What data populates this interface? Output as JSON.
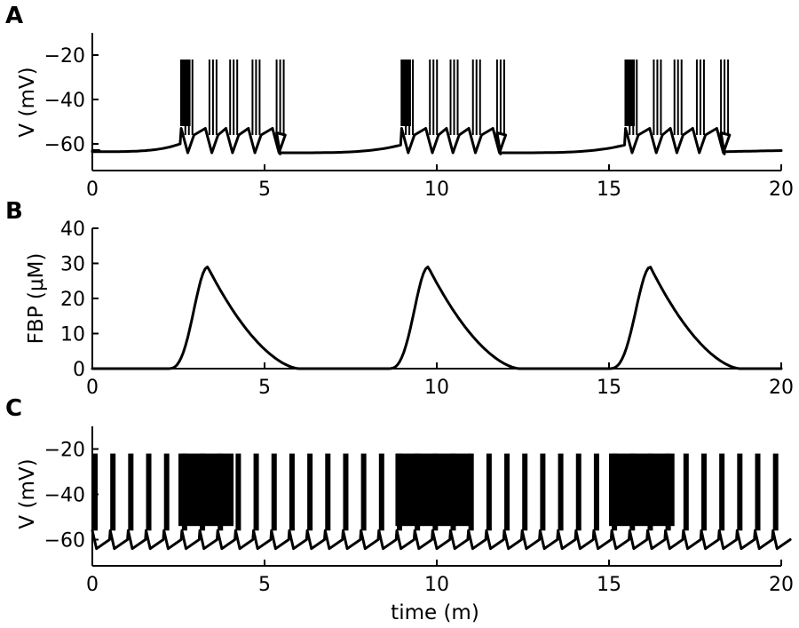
{
  "chart_data": [
    {
      "panel": "A",
      "type": "line",
      "ylabel": "V (mV)",
      "xlabel": "",
      "xlim": [
        0,
        20
      ],
      "ylim": [
        -70,
        -10
      ],
      "xticks": [
        0,
        5,
        10,
        15,
        20
      ],
      "yticks": [
        -20,
        -40,
        -60
      ],
      "ytick_labels": [
        "−20",
        "−40",
        "−60"
      ],
      "resting_potential": -63,
      "spike_peak": -22,
      "bursts": [
        {
          "start": 2.55,
          "end": 5.45,
          "dense_end": 2.85,
          "episodes": [
            2.7,
            3.4,
            4.0,
            4.65,
            5.35
          ]
        },
        {
          "start": 8.95,
          "end": 11.85,
          "dense_end": 9.25,
          "episodes": [
            9.1,
            9.8,
            10.4,
            11.05,
            11.75
          ]
        },
        {
          "start": 15.45,
          "end": 18.35,
          "dense_end": 15.75,
          "episodes": [
            15.6,
            16.3,
            16.9,
            17.55,
            18.25
          ]
        }
      ]
    },
    {
      "panel": "B",
      "type": "line",
      "ylabel": "FBP (μM)",
      "xlabel": "",
      "xlim": [
        0,
        20
      ],
      "ylim": [
        0,
        40
      ],
      "xticks": [
        0,
        5,
        10,
        15,
        20
      ],
      "yticks": [
        0,
        10,
        20,
        30,
        40
      ],
      "ytick_labels": [
        "0",
        "10",
        "20",
        "30",
        "40"
      ],
      "peaks": [
        {
          "onset": 2.2,
          "peak_time": 3.35,
          "peak": 29,
          "end": 6.0
        },
        {
          "onset": 8.6,
          "peak_time": 9.75,
          "peak": 29,
          "end": 12.4
        },
        {
          "onset": 15.0,
          "peak_time": 16.2,
          "peak": 29,
          "end": 18.8
        }
      ]
    },
    {
      "panel": "C",
      "type": "line",
      "ylabel": "V (mV)",
      "xlabel": "time (m)",
      "xlim": [
        0,
        20
      ],
      "ylim": [
        -70,
        -10
      ],
      "xticks": [
        0,
        5,
        10,
        15,
        20
      ],
      "yticks": [
        -20,
        -40,
        -60
      ],
      "ytick_labels": [
        "−20",
        "−40",
        "−60"
      ],
      "spike_peak": -22,
      "trough": -64,
      "episode_period": 0.52,
      "dense_regions": [
        [
          2.5,
          4.1
        ],
        [
          8.8,
          11.0
        ],
        [
          15.0,
          16.9
        ]
      ]
    }
  ]
}
